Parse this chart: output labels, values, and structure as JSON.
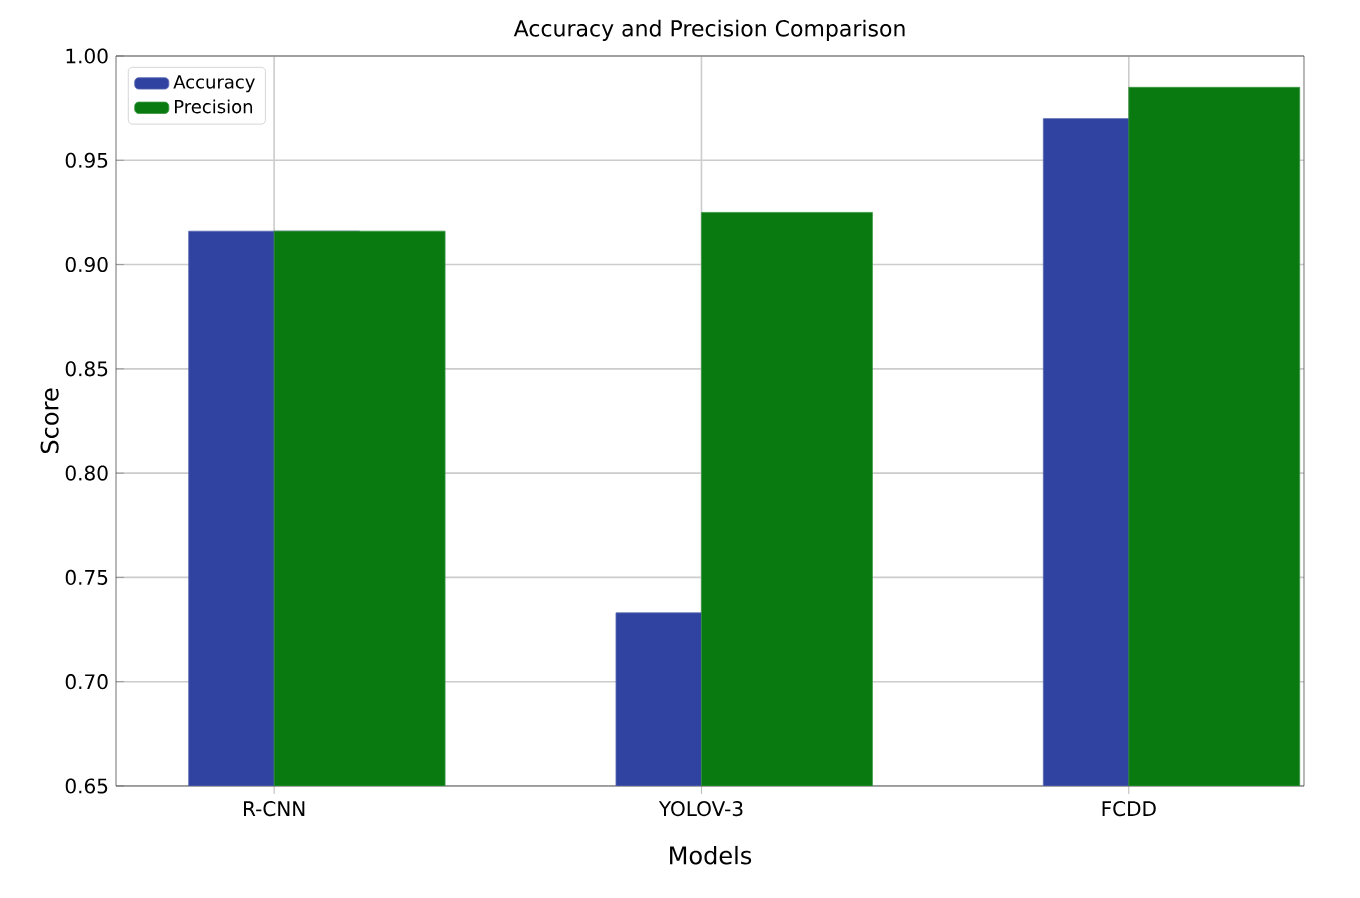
{
  "chart_data": {
    "type": "bar",
    "title": "Accuracy and Precision Comparison",
    "xlabel": "Models",
    "ylabel": "Score",
    "categories": [
      "R-CNN",
      "YOLOV-3",
      "FCDD"
    ],
    "series": [
      {
        "name": "Accuracy",
        "color": "#3043a0",
        "values": [
          0.916,
          0.733,
          0.97
        ]
      },
      {
        "name": "Precision",
        "color": "#087a10",
        "values": [
          0.916,
          0.925,
          0.985
        ]
      }
    ],
    "ylim": [
      0.65,
      1.0
    ],
    "yticks": [
      0.65,
      {
        "value": 0.7,
        "label": "0.70"
      },
      0.75,
      {
        "value": 0.8,
        "label": "0.80"
      },
      0.85,
      {
        "value": 0.9,
        "label": "0.90"
      },
      0.95,
      {
        "value": 1.0,
        "label": "1.00"
      }
    ],
    "grid": true,
    "legend": "top left"
  }
}
